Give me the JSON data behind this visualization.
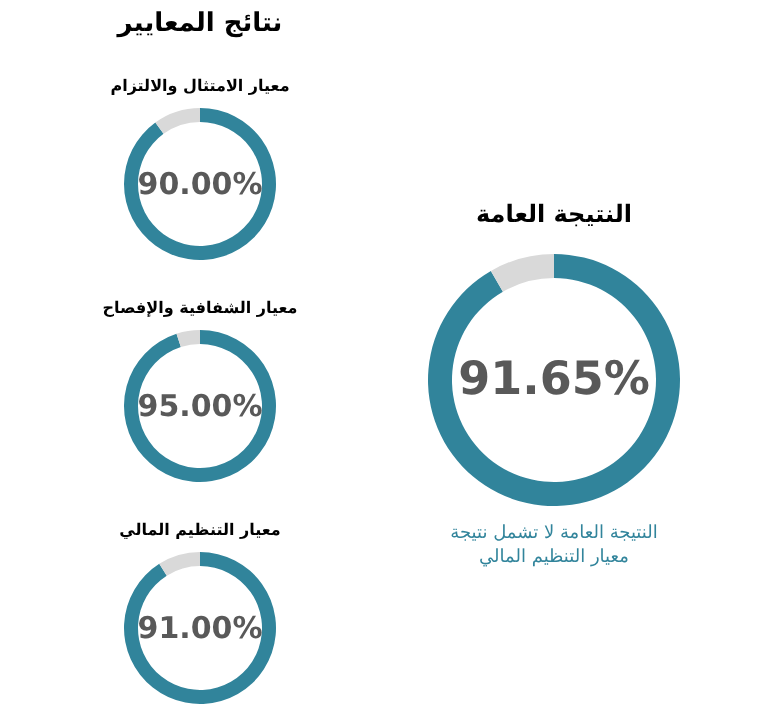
{
  "chart_data": [
    {
      "type": "other",
      "title": "نتائج المعايير"
    },
    {
      "type": "donut",
      "title": "معيار الامتثال والالتزام",
      "categories": [
        null,
        null
      ],
      "values": [
        90,
        10
      ],
      "colors": [
        "#31849b",
        "#d9d9d9"
      ],
      "value_labels": [
        "90.00%",
        null
      ]
    },
    {
      "type": "donut",
      "title": "معيار الشفافية والإفصاح",
      "categories": [
        null,
        null
      ],
      "values": [
        95,
        5
      ],
      "colors": [
        "#31849b",
        "#d9d9d9"
      ],
      "value_labels": [
        "95.00%",
        null
      ]
    },
    {
      "type": "donut",
      "title": "معيار التنظيم المالي",
      "categories": [
        null,
        null
      ],
      "values": [
        91,
        9
      ],
      "colors": [
        "#31849b",
        "#d9d9d9"
      ],
      "value_labels": [
        "91.00%",
        null
      ]
    },
    {
      "type": "donut",
      "title": "النتيجة العامة",
      "categories": [
        null,
        null
      ],
      "values": [
        91.65,
        8.35
      ],
      "colors": [
        "#31849b",
        "#d9d9d9"
      ],
      "value_labels": [
        "91.65%",
        null
      ],
      "annotations": [
        "النتيجة العامة لا تشمل نتيجة معيار التنظيم المالي"
      ]
    }
  ]
}
